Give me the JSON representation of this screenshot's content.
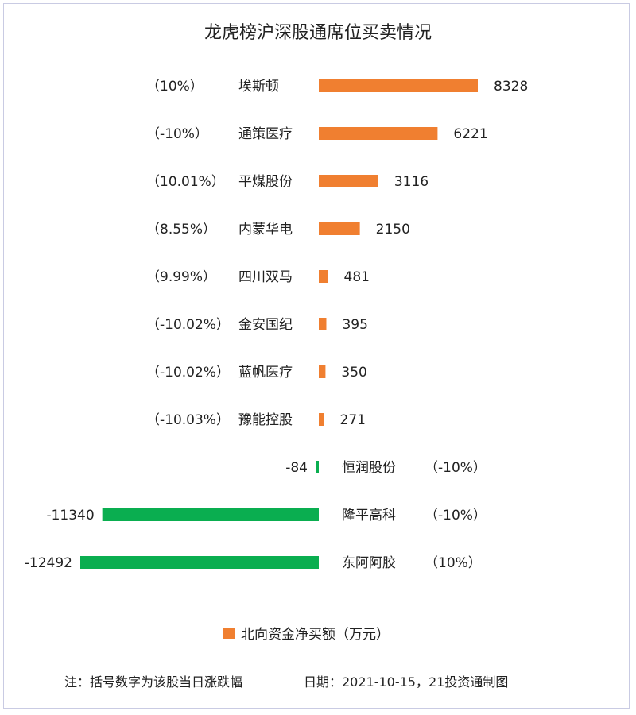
{
  "chart_data": {
    "type": "bar",
    "orientation": "horizontal",
    "title": "龙虎榜沪深股通席位买卖情况",
    "series": [
      {
        "name": "北向资金净买额（万元）",
        "color_positive": "#f07f30",
        "color_negative": "#0aae50",
        "categories": [
          "埃斯顿",
          "通策医疗",
          "平煤股份",
          "内蒙华电",
          "四川双马",
          "金安国纪",
          "蓝帆医疗",
          "豫能控股",
          "恒润股份",
          "隆平高科",
          "东阿阿胶"
        ],
        "values": [
          8328,
          6221,
          3116,
          2150,
          481,
          395,
          350,
          271,
          -84,
          -11340,
          -12492
        ],
        "value_labels": [
          "8328",
          "6221",
          "3116",
          "2150",
          "481",
          "395",
          "350",
          "271",
          "-84",
          "-11340",
          "-12492"
        ],
        "change_labels": [
          "（10%）",
          "（-10%）",
          "（10.01%）",
          "（8.55%）",
          "（9.99%）",
          "（-10.02%）",
          "（-10.02%）",
          "（-10.03%）",
          "（-10%）",
          "（-10%）",
          "（10%）"
        ]
      }
    ],
    "legend_position": "bottom",
    "grid": false
  },
  "footer": {
    "note": "注：括号数字为该股当日涨跌幅",
    "date": "日期：2021-10-15，21投资通制图"
  }
}
